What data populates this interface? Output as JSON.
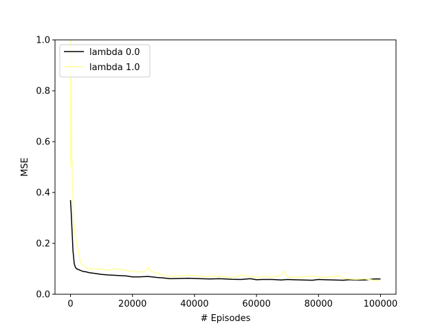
{
  "chart_data": {
    "type": "line",
    "title": "",
    "xlabel": "# Episodes",
    "ylabel": "MSE",
    "xlim": [
      -5000,
      105000
    ],
    "ylim": [
      0,
      1.0
    ],
    "xticks": [
      0,
      20000,
      40000,
      60000,
      80000,
      100000
    ],
    "xtick_labels": [
      "0",
      "20000",
      "40000",
      "60000",
      "80000",
      "100000"
    ],
    "yticks": [
      0.0,
      0.2,
      0.4,
      0.6,
      0.8,
      1.0
    ],
    "ytick_labels": [
      "0.0",
      "0.2",
      "0.4",
      "0.6",
      "0.8",
      "1.0"
    ],
    "grid": false,
    "legend_position": "top-left",
    "series": [
      {
        "name": "lambda 0.0",
        "color": "#000000",
        "x": [
          0,
          200,
          500,
          800,
          1200,
          1600,
          2000,
          3000,
          4000,
          5000,
          6000,
          8000,
          10000,
          12000,
          15000,
          18000,
          20000,
          22000,
          25000,
          28000,
          30000,
          32000,
          35000,
          38000,
          40000,
          42000,
          45000,
          48000,
          50000,
          52000,
          55000,
          58000,
          60000,
          62000,
          65000,
          68000,
          70000,
          72000,
          75000,
          78000,
          80000,
          82000,
          85000,
          88000,
          90000,
          92000,
          95000,
          98000,
          100000
        ],
        "y": [
          0.37,
          0.33,
          0.25,
          0.17,
          0.12,
          0.105,
          0.1,
          0.095,
          0.09,
          0.088,
          0.085,
          0.082,
          0.078,
          0.076,
          0.074,
          0.072,
          0.068,
          0.068,
          0.07,
          0.066,
          0.064,
          0.061,
          0.062,
          0.063,
          0.062,
          0.061,
          0.06,
          0.061,
          0.06,
          0.059,
          0.058,
          0.061,
          0.057,
          0.058,
          0.058,
          0.056,
          0.058,
          0.057,
          0.056,
          0.055,
          0.058,
          0.057,
          0.056,
          0.055,
          0.057,
          0.056,
          0.056,
          0.06,
          0.06
        ]
      },
      {
        "name": "lambda 1.0",
        "color": "#ffff99",
        "x": [
          0,
          100,
          200,
          400,
          600,
          800,
          1000,
          1300,
          1600,
          2000,
          2500,
          3000,
          3500,
          4000,
          5000,
          6000,
          8000,
          10000,
          12000,
          15000,
          18000,
          20000,
          22000,
          24000,
          25000,
          26000,
          28000,
          30000,
          32000,
          35000,
          38000,
          40000,
          42000,
          45000,
          48000,
          50000,
          52000,
          55000,
          58000,
          60000,
          62000,
          65000,
          68000,
          69000,
          70000,
          72000,
          75000,
          78000,
          80000,
          82000,
          85000,
          87000,
          88000,
          90000,
          92000,
          95000,
          98000,
          100000
        ],
        "y": [
          0.5,
          1.0,
          0.8,
          0.55,
          0.45,
          0.38,
          0.3,
          0.25,
          0.22,
          0.2,
          0.17,
          0.14,
          0.12,
          0.115,
          0.105,
          0.1,
          0.1,
          0.098,
          0.095,
          0.1,
          0.094,
          0.09,
          0.087,
          0.09,
          0.105,
          0.09,
          0.082,
          0.075,
          0.07,
          0.072,
          0.075,
          0.073,
          0.07,
          0.072,
          0.07,
          0.068,
          0.065,
          0.075,
          0.07,
          0.065,
          0.07,
          0.068,
          0.075,
          0.09,
          0.068,
          0.065,
          0.068,
          0.072,
          0.068,
          0.066,
          0.07,
          0.072,
          0.062,
          0.06,
          0.058,
          0.06,
          0.055,
          0.052
        ]
      }
    ]
  }
}
